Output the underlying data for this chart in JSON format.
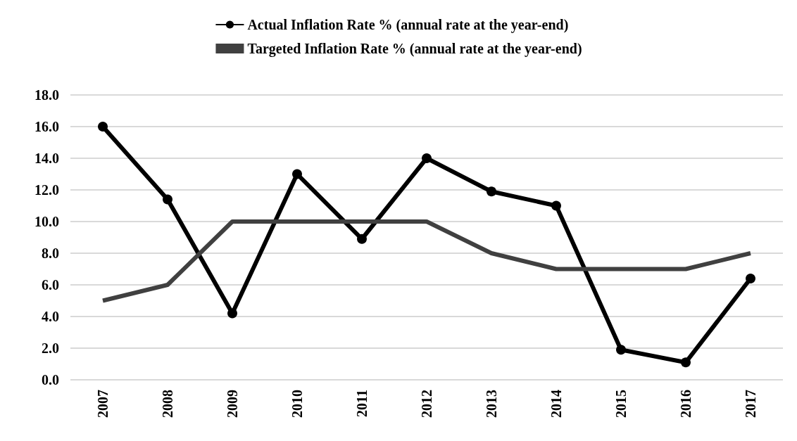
{
  "chart_data": {
    "type": "line",
    "categories": [
      "2007",
      "2008",
      "2009",
      "2010",
      "2011",
      "2012",
      "2013",
      "2014",
      "2015",
      "2016",
      "2017"
    ],
    "series": [
      {
        "name": "Actual Inflation Rate % (annual rate at the year-end)",
        "color": "#000000",
        "marker": "circle",
        "values": [
          16.0,
          11.4,
          4.2,
          13.0,
          8.9,
          14.0,
          11.9,
          11.0,
          1.9,
          1.1,
          6.4
        ]
      },
      {
        "name": "Targeted Inflation Rate % (annual rate at the year-end)",
        "color": "#404040",
        "marker": "none",
        "values": [
          5,
          6,
          10,
          10,
          10,
          10,
          8,
          7,
          7,
          7,
          8
        ]
      }
    ],
    "ylim": [
      0,
      18
    ],
    "yticks": [
      {
        "value": 0,
        "label": "0.0"
      },
      {
        "value": 2,
        "label": "2.0"
      },
      {
        "value": 4,
        "label": "4.0"
      },
      {
        "value": 6,
        "label": "6.0"
      },
      {
        "value": 8,
        "label": "8.0"
      },
      {
        "value": 10,
        "label": "10.0"
      },
      {
        "value": 12,
        "label": "12.0"
      },
      {
        "value": 14,
        "label": "14.0"
      },
      {
        "value": 16,
        "label": "16.0"
      },
      {
        "value": 18,
        "label": "18.0"
      }
    ],
    "grid": "y",
    "legend": "top",
    "line_style": "solid"
  }
}
